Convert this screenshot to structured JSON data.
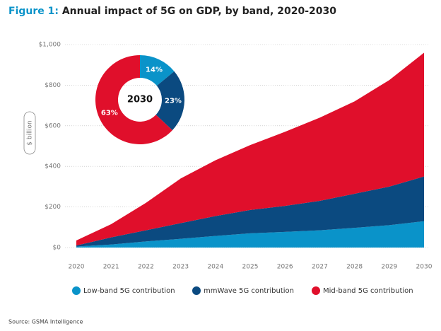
{
  "header": {
    "label": "Figure 1:",
    "title": "Annual impact of 5G on GDP, by band, 2020-2030"
  },
  "source": "Source: GSMA Intelligence",
  "chart_data": [
    {
      "type": "stacked-area",
      "y_label": "$ billion",
      "categories": [
        "2020",
        "2021",
        "2022",
        "2023",
        "2024",
        "2025",
        "2026",
        "2027",
        "2028",
        "2029",
        "2030"
      ],
      "series": [
        {
          "name": "Low-band 5G contribution",
          "color": "#0a93c9",
          "values": [
            5,
            15,
            30,
            43,
            57,
            70,
            77,
            85,
            97,
            110,
            130
          ]
        },
        {
          "name": "mmWave 5G contribution",
          "color": "#0b4a80",
          "values": [
            5,
            35,
            55,
            77,
            98,
            115,
            128,
            145,
            168,
            190,
            220
          ]
        },
        {
          "name": "Mid-band 5G contribution",
          "color": "#e00f2b",
          "values": [
            25,
            65,
            135,
            220,
            275,
            320,
            365,
            410,
            455,
            525,
            610
          ]
        }
      ],
      "ylim": [
        0,
        1000
      ],
      "yticks": [
        {
          "value": 0,
          "label": "$0"
        },
        {
          "value": 200,
          "label": "$200"
        },
        {
          "value": 400,
          "label": "$400"
        },
        {
          "value": 600,
          "label": "$600"
        },
        {
          "value": 800,
          "label": "$800"
        },
        {
          "value": 1000,
          "label": "$1,000"
        }
      ],
      "grid": true
    },
    {
      "type": "donut",
      "title": "2030",
      "values": [
        14,
        23,
        63
      ],
      "value_labels": [
        "14%",
        "23%",
        "63%"
      ],
      "colors": [
        "#0a93c9",
        "#0b4a80",
        "#e00f2b"
      ]
    }
  ]
}
